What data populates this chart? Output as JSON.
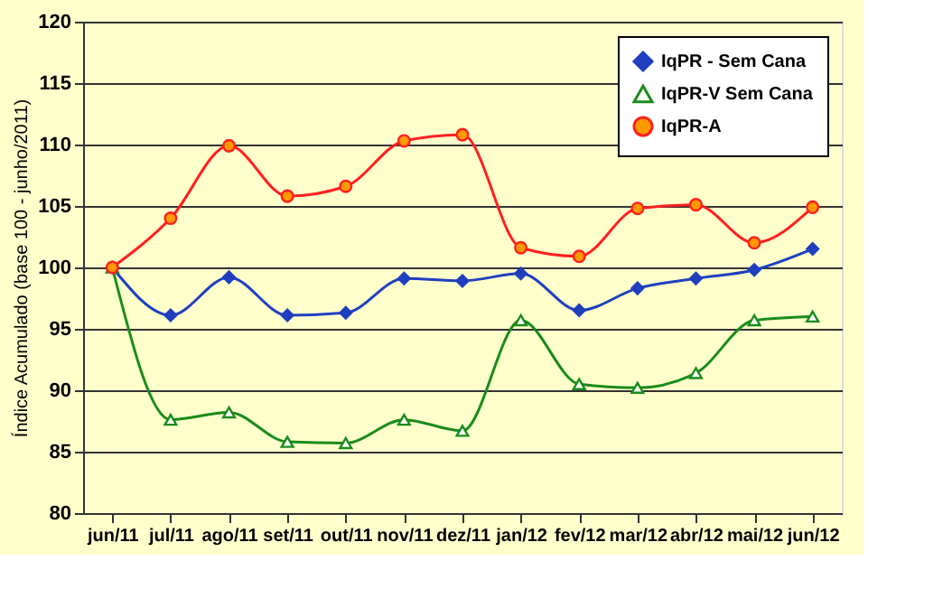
{
  "chart_data": {
    "type": "line",
    "ylabel": "Índice Acumulado (base 100 - junho/2011)",
    "categories": [
      "jun/11",
      "jul/11",
      "ago/11",
      "set/11",
      "out/11",
      "nov/11",
      "dez/11",
      "jan/12",
      "fev/12",
      "mar/12",
      "abr/12",
      "mai/12",
      "jun/12"
    ],
    "series": [
      {
        "name": "IqPR - Sem Cana",
        "color": "#1f3fbf",
        "marker": "diamond",
        "values": [
          100,
          96.1,
          99.2,
          96.1,
          96.3,
          99.1,
          98.9,
          99.5,
          96.5,
          98.3,
          99.1,
          99.8,
          101.5
        ]
      },
      {
        "name": "IqPR-V Sem Cana",
        "color": "#1a8c1a",
        "marker": "triangle",
        "values": [
          100,
          87.6,
          88.2,
          85.8,
          85.7,
          87.6,
          86.7,
          95.7,
          90.5,
          90.2,
          91.4,
          95.7,
          96.0
        ]
      },
      {
        "name": "IqPR-A",
        "color": "#ff2020",
        "marker": "circle",
        "values": [
          100,
          104.0,
          109.9,
          105.8,
          106.6,
          110.3,
          110.8,
          101.6,
          100.9,
          104.8,
          105.1,
          102.0,
          104.9
        ]
      }
    ],
    "ylim": [
      80,
      120
    ],
    "yticks": [
      80,
      85,
      90,
      95,
      100,
      105,
      110,
      115,
      120
    ],
    "grid": "y",
    "legend": "top right",
    "line_style": "solid"
  }
}
